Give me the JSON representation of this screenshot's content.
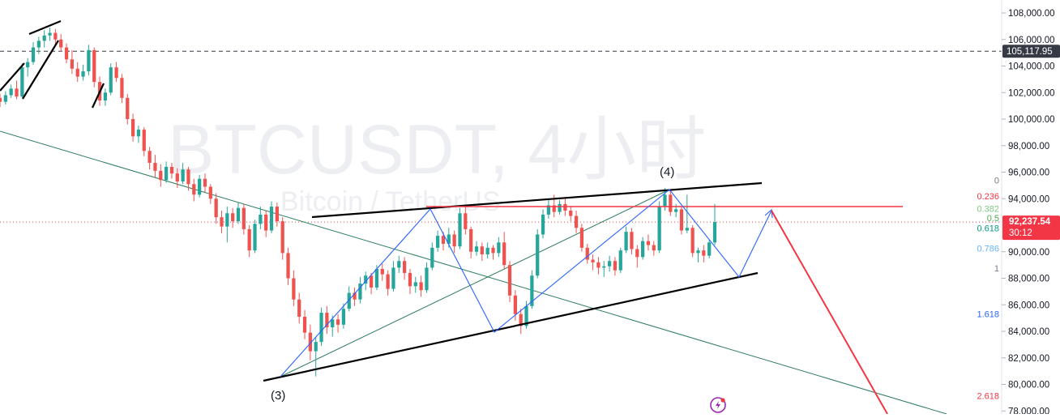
{
  "watermark": {
    "title": "BTCUSDT, 4小时",
    "subtitle": "Bitcoin / TetherUS"
  },
  "price_axis": {
    "ticks": [
      "108,000.00",
      "106,000.00",
      "104,000.00",
      "102,000.00",
      "100,000.00",
      "98,000.00",
      "96,000.00",
      "94,000.00",
      "90,000.00",
      "88,000.00",
      "86,000.00",
      "84,000.00",
      "82,000.00",
      "80,000.00",
      "78,000.00"
    ],
    "ticks_values": [
      108000,
      106000,
      104000,
      102000,
      100000,
      98000,
      96000,
      94000,
      90000,
      88000,
      86000,
      84000,
      82000,
      80000,
      78000
    ],
    "dashed_level": {
      "label": "105,117.95",
      "value": 105117.95
    },
    "current": {
      "price": "92,237.54",
      "timer": "30:12",
      "value": 92237.54
    }
  },
  "fib_levels": [
    {
      "label": "0",
      "value": 95400,
      "color": "#787b86"
    },
    {
      "label": "0.236",
      "value": 94200,
      "color": "#f23645"
    },
    {
      "label": "0.382",
      "value": 93250,
      "color": "#81c784"
    },
    {
      "label": "0.5",
      "value": 92550,
      "color": "#4caf50"
    },
    {
      "label": "0.618",
      "value": 91800,
      "color": "#089981"
    },
    {
      "label": "0.786",
      "value": 90250,
      "color": "#64b5f6"
    },
    {
      "label": "1",
      "value": 88750,
      "color": "#787b86"
    },
    {
      "label": "1.618",
      "value": 85300,
      "color": "#2962ff"
    },
    {
      "label": "2.618",
      "value": 79150,
      "color": "#f23645"
    }
  ],
  "wave_labels": [
    {
      "text": "(3)",
      "name": "wave-label-3"
    },
    {
      "text": "(4)",
      "name": "wave-label-4"
    }
  ],
  "colors": {
    "up": "#26a69a",
    "down": "#ef5350",
    "price_badge": "#f23645",
    "dashed_badge": "#363a45",
    "channel": "#000000",
    "zigzag": "#2962ff",
    "trend": "#2e7d5b",
    "projection": "#f23645"
  },
  "chart_data": {
    "type": "candlestick",
    "title": "BTCUSDT, 4小时",
    "subtitle": "Bitcoin / TetherUS",
    "ylim": [
      77500,
      109000
    ],
    "y_scale": "linear",
    "candles": [
      [
        101600,
        101900,
        100900,
        101300
      ],
      [
        101300,
        102100,
        101100,
        101800
      ],
      [
        101800,
        102600,
        101600,
        102300
      ],
      [
        102300,
        102900,
        101500,
        101700
      ],
      [
        101700,
        104200,
        101600,
        103900
      ],
      [
        103900,
        104600,
        103200,
        104300
      ],
      [
        104300,
        105800,
        104100,
        105400
      ],
      [
        105400,
        106200,
        104900,
        105900
      ],
      [
        105900,
        106700,
        105400,
        106300
      ],
      [
        106300,
        106900,
        105900,
        106500
      ],
      [
        106500,
        106800,
        105600,
        106000
      ],
      [
        106000,
        106400,
        105100,
        105400
      ],
      [
        105400,
        105700,
        104200,
        104500
      ],
      [
        104500,
        105200,
        103400,
        103800
      ],
      [
        103800,
        104300,
        102800,
        103200
      ],
      [
        103200,
        104100,
        102900,
        103600
      ],
      [
        103600,
        105600,
        103300,
        105200
      ],
      [
        105200,
        105400,
        102400,
        102800
      ],
      [
        102800,
        103200,
        101000,
        101400
      ],
      [
        101400,
        102300,
        101000,
        102000
      ],
      [
        102000,
        104200,
        101800,
        103900
      ],
      [
        103900,
        104300,
        102800,
        103100
      ],
      [
        103100,
        103400,
        101200,
        101600
      ],
      [
        101600,
        101900,
        99600,
        100000
      ],
      [
        100000,
        100400,
        98300,
        98700
      ],
      [
        98700,
        99500,
        98200,
        99200
      ],
      [
        99200,
        99400,
        97200,
        97600
      ],
      [
        97600,
        97900,
        96200,
        96700
      ],
      [
        96700,
        97300,
        95600,
        96100
      ],
      [
        96100,
        96600,
        94900,
        95400
      ],
      [
        95400,
        96800,
        95200,
        96400
      ],
      [
        96400,
        96700,
        95500,
        95900
      ],
      [
        95900,
        96300,
        94800,
        95300
      ],
      [
        95300,
        96700,
        95100,
        96200
      ],
      [
        96200,
        96400,
        94600,
        95100
      ],
      [
        95100,
        95500,
        93800,
        94300
      ],
      [
        94300,
        95800,
        94100,
        95500
      ],
      [
        95500,
        95900,
        94500,
        94900
      ],
      [
        94900,
        95100,
        93600,
        94000
      ],
      [
        94000,
        94400,
        92100,
        92600
      ],
      [
        92600,
        93100,
        91400,
        91900
      ],
      [
        91900,
        93400,
        90700,
        92900
      ],
      [
        92900,
        93300,
        91800,
        92300
      ],
      [
        92300,
        93700,
        92100,
        93300
      ],
      [
        93300,
        93600,
        91300,
        91700
      ],
      [
        91700,
        92000,
        89600,
        90100
      ],
      [
        90100,
        92400,
        89900,
        92100
      ],
      [
        92100,
        93400,
        91700,
        92800
      ],
      [
        92800,
        93100,
        91100,
        91600
      ],
      [
        91600,
        93800,
        91400,
        93400
      ],
      [
        93400,
        93700,
        91900,
        92300
      ],
      [
        92300,
        92600,
        89400,
        89900
      ],
      [
        89900,
        90300,
        87500,
        88000
      ],
      [
        88000,
        88600,
        85900,
        86400
      ],
      [
        86400,
        86900,
        84600,
        85100
      ],
      [
        85100,
        85600,
        83400,
        83900
      ],
      [
        83900,
        84500,
        81800,
        82500
      ],
      [
        82500,
        83600,
        80600,
        83200
      ],
      [
        83200,
        85800,
        82900,
        85400
      ],
      [
        85400,
        85900,
        83800,
        84300
      ],
      [
        84300,
        85200,
        83600,
        84900
      ],
      [
        84900,
        85300,
        83900,
        84500
      ],
      [
        84500,
        86100,
        84200,
        85700
      ],
      [
        85700,
        87400,
        85500,
        86900
      ],
      [
        86900,
        87300,
        85900,
        86400
      ],
      [
        86400,
        88100,
        86100,
        87600
      ],
      [
        87600,
        88500,
        87100,
        88200
      ],
      [
        88200,
        88400,
        86800,
        87300
      ],
      [
        87300,
        89000,
        87100,
        88700
      ],
      [
        88700,
        89100,
        87800,
        88300
      ],
      [
        88300,
        88600,
        86700,
        87200
      ],
      [
        87200,
        89300,
        87000,
        88800
      ],
      [
        88800,
        89700,
        88400,
        89300
      ],
      [
        89300,
        89600,
        87900,
        88400
      ],
      [
        88400,
        88700,
        86800,
        87400
      ],
      [
        87400,
        88100,
        86900,
        87700
      ],
      [
        87700,
        88200,
        86600,
        87100
      ],
      [
        87100,
        89200,
        86900,
        88800
      ],
      [
        88800,
        90700,
        88600,
        90300
      ],
      [
        90300,
        91600,
        90000,
        91200
      ],
      [
        91200,
        91500,
        90100,
        90600
      ],
      [
        90600,
        91800,
        90300,
        91300
      ],
      [
        91300,
        91600,
        89900,
        90400
      ],
      [
        90400,
        93300,
        90200,
        92900
      ],
      [
        92900,
        93400,
        91300,
        91700
      ],
      [
        91700,
        91900,
        89500,
        90000
      ],
      [
        90000,
        90800,
        89700,
        90400
      ],
      [
        90400,
        90700,
        89300,
        89800
      ],
      [
        89800,
        90700,
        89500,
        90300
      ],
      [
        90300,
        90500,
        89400,
        89900
      ],
      [
        89900,
        91100,
        89600,
        90700
      ],
      [
        90700,
        91500,
        88700,
        89000
      ],
      [
        89000,
        89300,
        86200,
        86700
      ],
      [
        86700,
        87100,
        84800,
        85300
      ],
      [
        85300,
        85700,
        83800,
        84400
      ],
      [
        84400,
        86300,
        84200,
        85900
      ],
      [
        85900,
        88600,
        85700,
        88200
      ],
      [
        88200,
        91700,
        88000,
        91300
      ],
      [
        91300,
        93200,
        91000,
        92800
      ],
      [
        92800,
        93900,
        92500,
        93500
      ],
      [
        93500,
        94300,
        92600,
        93000
      ],
      [
        93000,
        93900,
        92800,
        93600
      ],
      [
        93600,
        94000,
        92700,
        93100
      ],
      [
        93100,
        93400,
        92300,
        92700
      ],
      [
        92700,
        93100,
        91400,
        91800
      ],
      [
        91800,
        92100,
        90000,
        90300
      ],
      [
        90300,
        90600,
        89100,
        89400
      ],
      [
        89400,
        89800,
        88600,
        89200
      ],
      [
        89200,
        89600,
        88300,
        88800
      ],
      [
        88800,
        89300,
        88100,
        88900
      ],
      [
        88900,
        89700,
        88500,
        89300
      ],
      [
        89300,
        89600,
        88200,
        88600
      ],
      [
        88600,
        90300,
        88400,
        90100
      ],
      [
        90100,
        91900,
        89900,
        91500
      ],
      [
        91500,
        91800,
        89800,
        90200
      ],
      [
        90200,
        90500,
        88800,
        89600
      ],
      [
        89600,
        91100,
        89400,
        90800
      ],
      [
        90800,
        91300,
        90100,
        90500
      ],
      [
        90500,
        90800,
        89700,
        90100
      ],
      [
        90100,
        93800,
        89900,
        93400
      ],
      [
        93400,
        94800,
        93100,
        94300
      ],
      [
        94300,
        94600,
        92700,
        93000
      ],
      [
        93000,
        93600,
        92600,
        93200
      ],
      [
        93200,
        93400,
        91300,
        91600
      ],
      [
        91600,
        94300,
        91400,
        91800
      ],
      [
        91800,
        92000,
        89600,
        89900
      ],
      [
        89900,
        90300,
        89200,
        90100
      ],
      [
        90100,
        90500,
        89200,
        89700
      ],
      [
        89700,
        90900,
        89500,
        90700
      ],
      [
        90700,
        93600,
        90500,
        92238
      ]
    ],
    "annotations": [
      "(3)",
      "(4)"
    ]
  }
}
